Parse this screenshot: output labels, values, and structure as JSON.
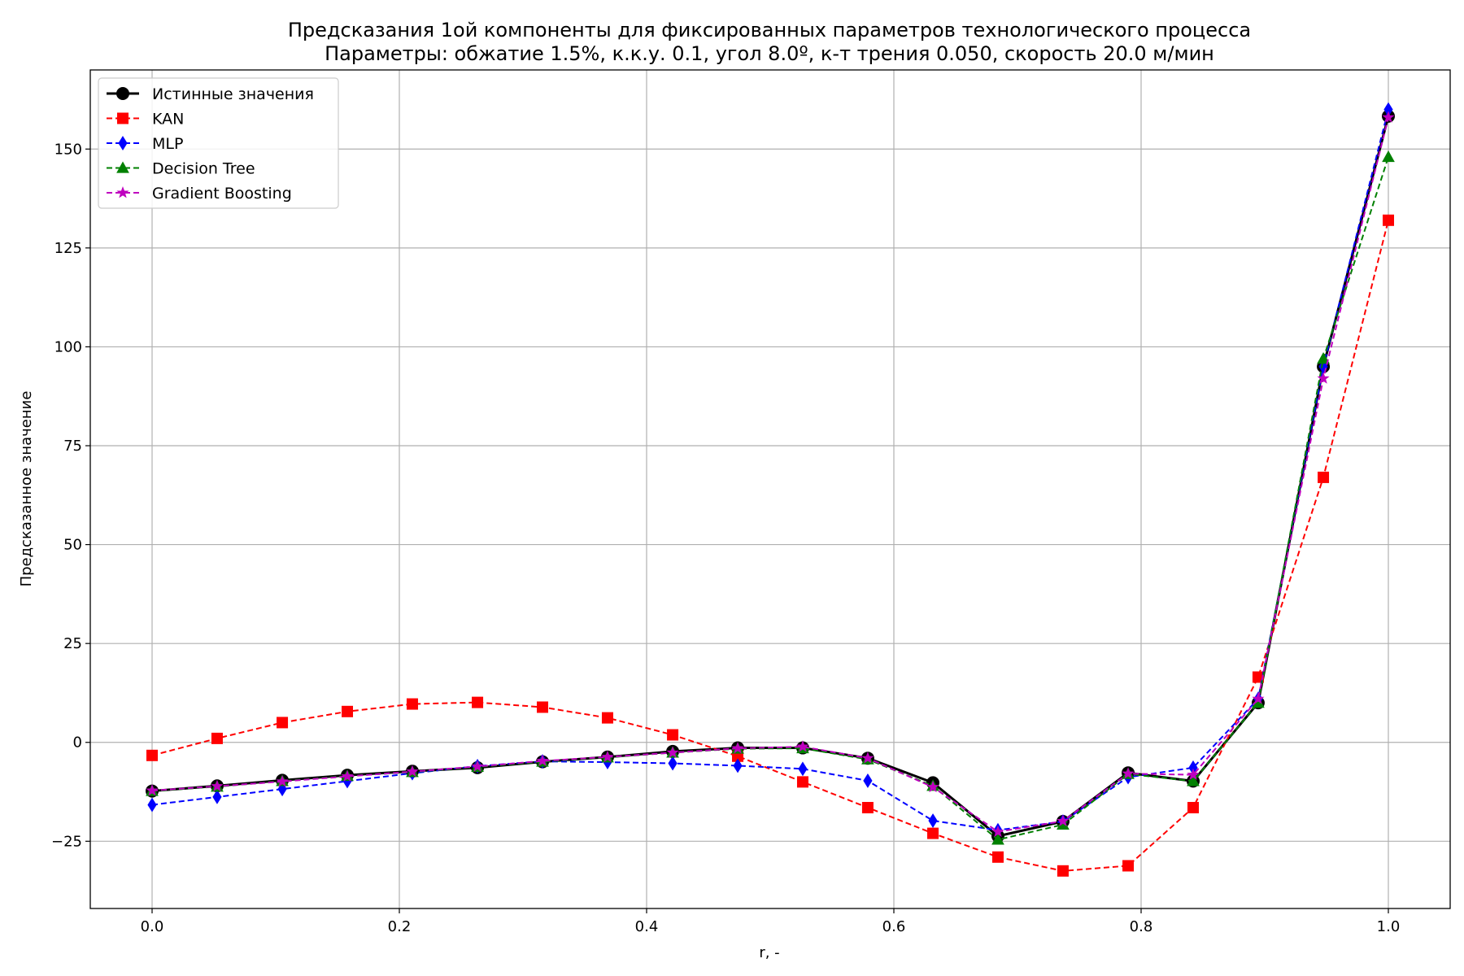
{
  "chart_data": {
    "type": "line",
    "title": "Предсказания 1ой компоненты для фиксированных параметров технологического процесса",
    "subtitle": "Параметры: обжатие 1.5%, к.к.у. 0.1, угол 8.0º, к-т трения 0.050, скорость 20.0 м/мин",
    "xlabel": "r, -",
    "ylabel": "Предсказанное значение",
    "xlim": [
      -0.05,
      1.05
    ],
    "ylim": [
      -42,
      170
    ],
    "grid": true,
    "legend_position": "top-left",
    "xticks": [
      0.0,
      0.2,
      0.4,
      0.6,
      0.8,
      1.0
    ],
    "xtick_labels": [
      "0.0",
      "0.2",
      "0.4",
      "0.6",
      "0.8",
      "1.0"
    ],
    "yticks": [
      -25,
      0,
      25,
      50,
      75,
      100,
      125,
      150
    ],
    "ytick_labels": [
      "−25",
      "0",
      "25",
      "50",
      "75",
      "100",
      "125",
      "150"
    ],
    "x": [
      0.0,
      0.0526,
      0.1053,
      0.1579,
      0.2105,
      0.2632,
      0.3158,
      0.3684,
      0.4211,
      0.4737,
      0.5263,
      0.5789,
      0.6316,
      0.6842,
      0.7368,
      0.7895,
      0.8421,
      0.8947,
      0.9474,
      1.0
    ],
    "series": [
      {
        "name": "Истинные значения",
        "color": "#000000",
        "marker": "circle",
        "line": "solid",
        "values": [
          -12.3,
          -11.0,
          -9.6,
          -8.3,
          -7.3,
          -6.4,
          -4.9,
          -3.7,
          -2.3,
          -1.4,
          -1.4,
          -4.0,
          -10.2,
          -23.7,
          -20.0,
          -7.7,
          -9.8,
          10.0,
          95.0,
          158.3
        ]
      },
      {
        "name": "KAN",
        "color": "#ff0000",
        "marker": "square",
        "line": "dashed",
        "values": [
          -3.3,
          1.0,
          5.0,
          7.8,
          9.7,
          10.1,
          8.9,
          6.2,
          1.9,
          -3.5,
          -10.0,
          -16.5,
          -23.0,
          -29.0,
          -32.5,
          -31.2,
          -16.5,
          16.5,
          67.0,
          132.0
        ]
      },
      {
        "name": "MLP",
        "color": "#0000ff",
        "marker": "thin_diamond",
        "line": "dashed",
        "values": [
          -15.8,
          -13.8,
          -11.8,
          -9.8,
          -7.8,
          -6.0,
          -4.8,
          -5.0,
          -5.3,
          -5.9,
          -6.7,
          -9.7,
          -19.8,
          -22.2,
          -20.0,
          -8.8,
          -6.4,
          11.0,
          95.0,
          160.0
        ]
      },
      {
        "name": "Decision Tree",
        "color": "#008000",
        "marker": "triangle",
        "line": "dashed",
        "values": [
          -12.3,
          -11.2,
          -9.8,
          -8.5,
          -7.5,
          -6.2,
          -4.9,
          -3.8,
          -2.6,
          -1.6,
          -1.5,
          -4.3,
          -11.0,
          -24.6,
          -20.8,
          -8.0,
          -9.8,
          10.0,
          97.0,
          148.0
        ]
      },
      {
        "name": "Gradient Boosting",
        "color": "#bf00bf",
        "marker": "star",
        "line": "dashed",
        "values": [
          -12.2,
          -11.1,
          -9.9,
          -8.6,
          -7.4,
          -6.1,
          -4.7,
          -3.7,
          -2.6,
          -1.5,
          -1.1,
          -4.0,
          -11.3,
          -22.6,
          -19.9,
          -7.9,
          -8.2,
          11.0,
          92.0,
          158.0
        ]
      }
    ]
  }
}
